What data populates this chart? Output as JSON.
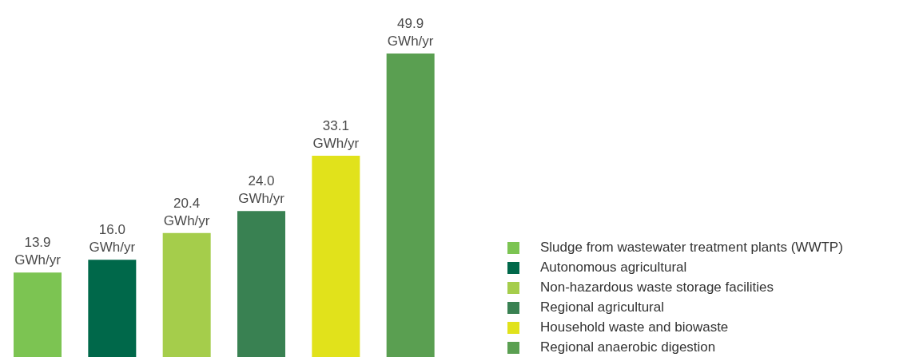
{
  "chart_data": {
    "type": "bar",
    "stacked": true,
    "categories": [
      null,
      null,
      null,
      null,
      null,
      null
    ],
    "legend": "bottom right",
    "series": [
      {
        "name": "Sludge from wastewater treatment plants (WWTP)",
        "color": "#7cc452",
        "values": [
          13.9,
          null,
          null,
          null,
          null,
          null
        ],
        "value_labels": [
          "13.9 GWh/yr",
          null,
          null,
          null,
          null,
          null
        ]
      },
      {
        "name": "Autonomous agricultural",
        "color": "#00684a",
        "values": [
          null,
          16.0,
          null,
          null,
          null,
          null
        ],
        "value_labels": [
          null,
          "16.0 GWh/yr",
          null,
          null,
          null,
          null
        ]
      },
      {
        "name": "Non-hazardous waste storage facilities",
        "color": "#a5cd4b",
        "values": [
          null,
          null,
          20.4,
          null,
          null,
          null
        ],
        "value_labels": [
          null,
          null,
          "20.4 GWh/yr",
          null,
          null,
          null
        ]
      },
      {
        "name": "Regional agricultural",
        "color": "#398152",
        "values": [
          null,
          null,
          null,
          24.0,
          null,
          null
        ],
        "value_labels": [
          null,
          null,
          null,
          "24.0 GWh/yr",
          null,
          null
        ]
      },
      {
        "name": "Household waste and biowaste",
        "color": "#e1e21b",
        "values": [
          null,
          null,
          null,
          null,
          33.1,
          null
        ],
        "value_labels": [
          null,
          null,
          null,
          null,
          "33.1 GWh/yr",
          null
        ]
      },
      {
        "name": "Regional anaerobic digestion",
        "color": "#5a9f51",
        "values": [
          null,
          null,
          null,
          null,
          null,
          49.9
        ],
        "value_labels": [
          null,
          null,
          null,
          null,
          null,
          "49.9 GWh/yr"
        ]
      }
    ]
  }
}
